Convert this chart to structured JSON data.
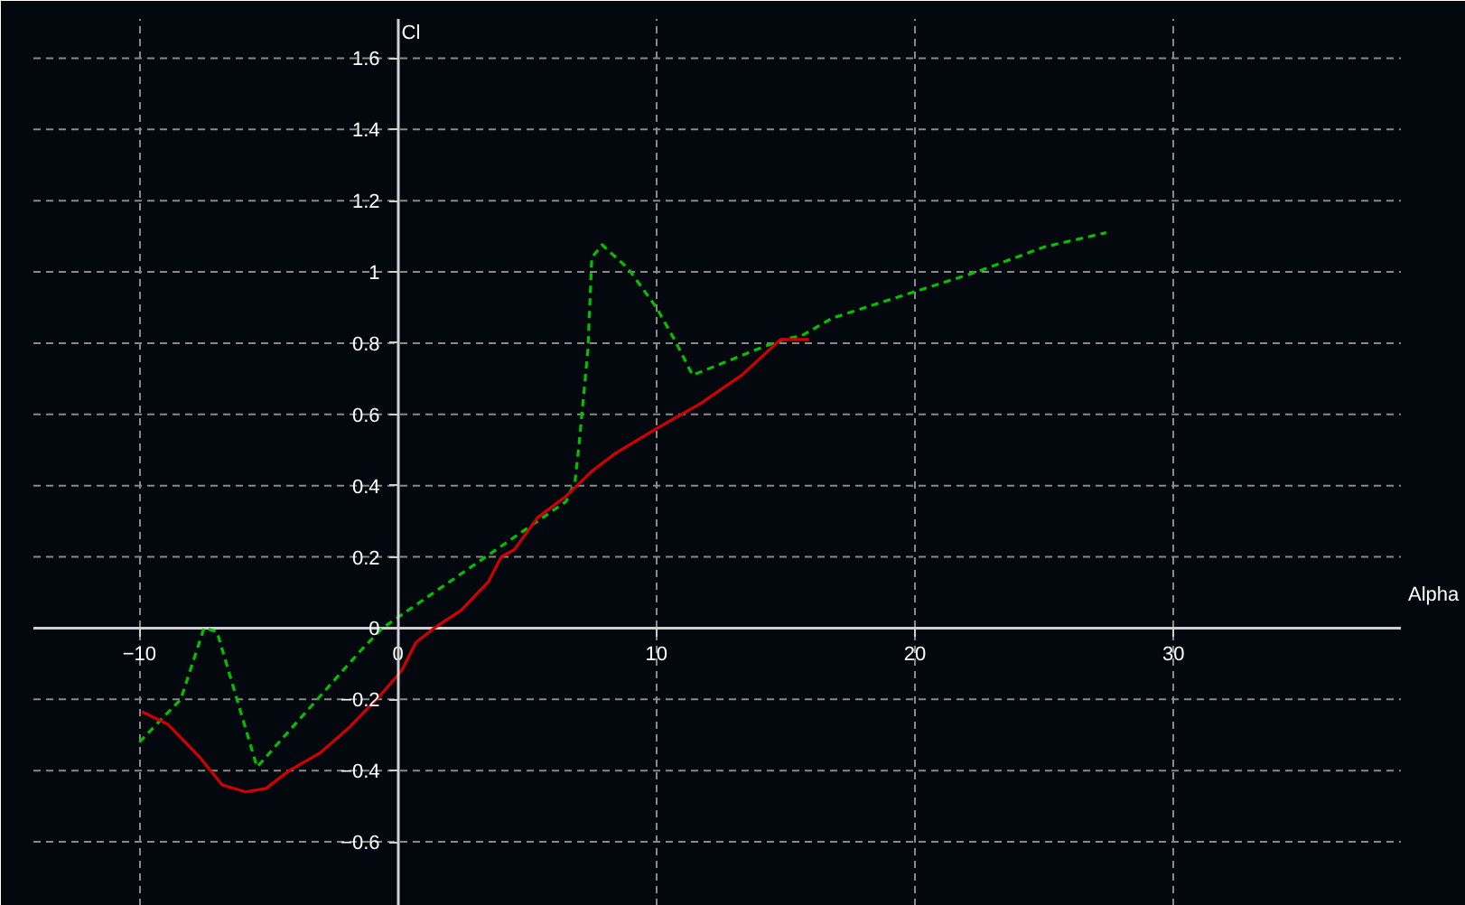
{
  "chart_data": {
    "type": "line",
    "xlabel": "Alpha",
    "ylabel": "Cl",
    "xlim": [
      -14.1,
      38.8
    ],
    "ylim": [
      -0.78,
      1.71
    ],
    "xticks": [
      -10,
      0,
      10,
      20,
      30
    ],
    "yticks": [
      -0.6,
      -0.4,
      -0.2,
      0,
      0.2,
      0.4,
      0.6,
      0.8,
      1.0,
      1.2,
      1.4,
      1.6
    ],
    "grid": true,
    "marker": "none",
    "series": [
      {
        "color": "#00c000",
        "line_style": "dashed",
        "x": [
          -10,
          -8.4,
          -7.5,
          -7.0,
          -5.45,
          -1.4,
          -0.6,
          6.5,
          6.85,
          7.0,
          7.35,
          7.5,
          7.9,
          8.9,
          10,
          10.7,
          11.4,
          12.6,
          13.8,
          14.9,
          15.6,
          16.8,
          19.8,
          22.4,
          25.0,
          27.4
        ],
        "values": [
          -0.32,
          -0.2,
          0,
          -0.01,
          -0.39,
          -0.06,
          0,
          0.355,
          0.41,
          0.51,
          0.78,
          1.04,
          1.076,
          1.01,
          0.9,
          0.81,
          0.71,
          0.745,
          0.78,
          0.81,
          0.82,
          0.87,
          0.94,
          1.0,
          1.07,
          1.11
        ]
      },
      {
        "color": "#d00000",
        "line_style": "solid",
        "x": [
          -9.9,
          -8.9,
          -7.7,
          -6.8,
          -5.9,
          -5.1,
          -4.2,
          -3.0,
          -1.9,
          -0.7,
          0.14,
          0.7,
          1.4,
          2.45,
          3.5,
          4.0,
          4.5,
          5.4,
          6.5,
          7.5,
          8.4,
          10,
          11.7,
          13.3,
          14.8,
          15.9
        ],
        "values": [
          -0.235,
          -0.27,
          -0.36,
          -0.44,
          -0.46,
          -0.45,
          -0.4,
          -0.35,
          -0.28,
          -0.19,
          -0.12,
          -0.04,
          0,
          0.05,
          0.13,
          0.2,
          0.22,
          0.31,
          0.37,
          0.44,
          0.49,
          0.56,
          0.63,
          0.71,
          0.81,
          0.81
        ]
      }
    ]
  }
}
